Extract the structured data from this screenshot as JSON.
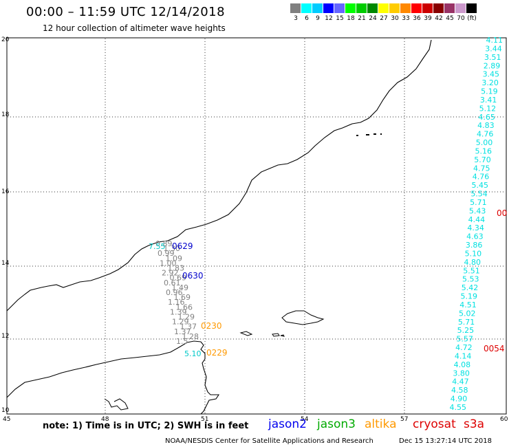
{
  "header": {
    "title": "00:00 – 11:59 UTC 12/14/2018",
    "subtitle": "12 hour collection of altimeter wave heights"
  },
  "scale": {
    "colors": [
      "#808080",
      "#00ffff",
      "#00ccff",
      "#0000ff",
      "#6666ff",
      "#00ff00",
      "#00cc00",
      "#008800",
      "#ffff00",
      "#ffcc00",
      "#ff8800",
      "#ff0000",
      "#cc0000",
      "#880000",
      "#993366",
      "#cc99cc",
      "#000000"
    ],
    "labels": [
      "3",
      "6",
      "9",
      "12",
      "15",
      "18",
      "21",
      "24",
      "27",
      "30",
      "33",
      "36",
      "39",
      "42",
      "45",
      "70",
      "(ft)"
    ]
  },
  "axes": {
    "x_ticks": [
      "45",
      "48",
      "51",
      "54",
      "57",
      "60"
    ],
    "y_ticks": [
      "10",
      "12",
      "14",
      "16",
      "18",
      "20"
    ]
  },
  "footer": {
    "note": "note: 1) Time is in UTC; 2) SWH is in feet",
    "credit": "NOAA/NESDIS Center for Satellite Applications and Research",
    "timestamp": "Dec 15 13:27:14 UTC 2018"
  },
  "legend": [
    {
      "label": "jason2",
      "color": "#0000ee"
    },
    {
      "label": "jason3",
      "color": "#00aa00"
    },
    {
      "label": "altika",
      "color": "#ff9900"
    },
    {
      "label": "cryosat",
      "color": "#dd0000"
    },
    {
      "label": "s3a",
      "color": "#dd0000"
    }
  ],
  "time_labels": [
    {
      "text": "0629",
      "color": "#0000cc"
    },
    {
      "text": "0630",
      "color": "#0000cc"
    },
    {
      "text": "0230",
      "color": "#ff9900"
    },
    {
      "text": "0229",
      "color": "#ff9900"
    },
    {
      "text": "00",
      "color": "#dd0000"
    },
    {
      "text": "0054",
      "color": "#dd0000"
    }
  ],
  "track_cyan": {
    "color": "#00e0e0",
    "values": [
      "4.11",
      "3.44",
      "3.51",
      "2.89",
      "3.45",
      "3.20",
      "5.19",
      "3.41",
      "5.12",
      "4.65",
      "4.83",
      "4.76",
      "5.00",
      "5.16",
      "5.70",
      "4.75",
      "4.76",
      "5.45",
      "5.54",
      "5.71",
      "5.43",
      "4.44",
      "4.34",
      "4.63",
      "3.86",
      "5.10",
      "4.80",
      "5.51",
      "5.53",
      "5.42",
      "5.19",
      "4.51",
      "5.02",
      "5.71",
      "5.25",
      "5.57",
      "4.72",
      "4.14",
      "4.08",
      "3.80",
      "4.47",
      "4.58",
      "4.90",
      "4.55"
    ]
  },
  "track_gray": {
    "color": "#808080",
    "values": [
      "0.89",
      "1.30",
      "0.99",
      "1.09",
      "1.00",
      "1.83",
      "2.92",
      "0.69",
      "0.61",
      "1.49",
      "0.96",
      "1.69",
      "1.16",
      "1.66",
      "1.39",
      "1.29",
      "1.29",
      "1.37",
      "1.37",
      "1.28",
      "1.5"
    ]
  },
  "cyan_singles": [
    "7.55",
    "5.10"
  ]
}
